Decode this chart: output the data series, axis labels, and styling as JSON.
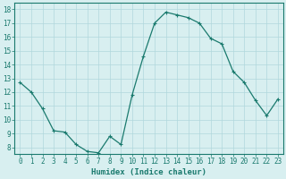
{
  "x": [
    0,
    1,
    2,
    3,
    4,
    5,
    6,
    7,
    8,
    9,
    10,
    11,
    12,
    13,
    14,
    15,
    16,
    17,
    18,
    19,
    20,
    21,
    22,
    23
  ],
  "y": [
    12.7,
    12.0,
    10.8,
    9.2,
    9.1,
    8.2,
    7.7,
    7.6,
    8.8,
    8.2,
    11.8,
    14.6,
    17.0,
    17.8,
    17.6,
    17.4,
    17.0,
    15.9,
    15.5,
    13.5,
    12.7,
    11.4,
    10.3,
    11.5
  ],
  "xlim": [
    -0.5,
    23.5
  ],
  "ylim": [
    7.5,
    18.5
  ],
  "yticks": [
    8,
    9,
    10,
    11,
    12,
    13,
    14,
    15,
    16,
    17,
    18
  ],
  "xticks": [
    0,
    1,
    2,
    3,
    4,
    5,
    6,
    7,
    8,
    9,
    10,
    11,
    12,
    13,
    14,
    15,
    16,
    17,
    18,
    19,
    20,
    21,
    22,
    23
  ],
  "xlabel": "Humidex (Indice chaleur)",
  "line_color": "#1a7a6e",
  "marker": "+",
  "marker_size": 3,
  "bg_color": "#d8eff0",
  "grid_color": "#b0d8dc",
  "tick_color": "#1a7a6e",
  "label_color": "#1a7a6e",
  "xlabel_fontsize": 6.5,
  "tick_fontsize": 5.5,
  "linewidth": 0.9
}
